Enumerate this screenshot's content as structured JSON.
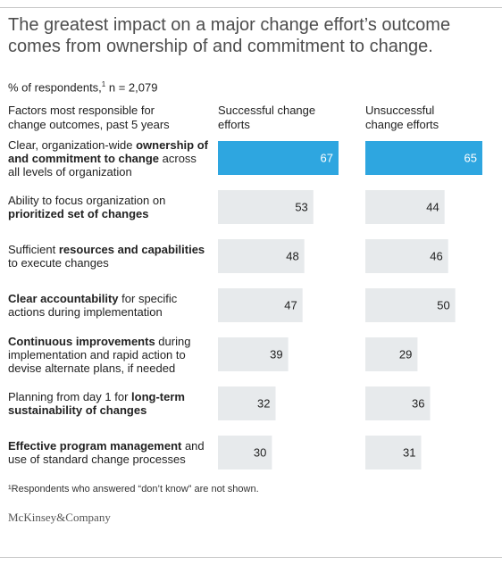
{
  "title": "The greatest impact on a major change effort’s outcome comes from ownership of and commitment to change.",
  "unit_label": "% of respondents,",
  "unit_note_marker": "1",
  "unit_n": " n = 2,079",
  "footnote": "¹Respondents who answered “don’t know” are not shown.",
  "logo": "McKinsey&Company",
  "colors": {
    "highlight": "#2ea6e0",
    "bar": "#e7eaec",
    "highlight_text": "#ffffff",
    "bar_text": "#222222"
  },
  "chart_data": {
    "type": "bar",
    "orientation": "horizontal",
    "category_header": "Factors most responsible for change outcomes, past 5 years",
    "categories": [
      [
        {
          "t": "Clear, organization-wide ",
          "b": false
        },
        {
          "t": "ownership of and commitment to change",
          "b": true
        },
        {
          "t": " across all levels of organization",
          "b": false
        }
      ],
      [
        {
          "t": "Ability to focus organization on ",
          "b": false
        },
        {
          "t": "prioritized set of changes",
          "b": true
        }
      ],
      [
        {
          "t": "Sufficient ",
          "b": false
        },
        {
          "t": "resources and capabilities",
          "b": true
        },
        {
          "t": " to execute changes",
          "b": false
        }
      ],
      [
        {
          "t": "Clear accountability",
          "b": true
        },
        {
          "t": " for specific actions during implementation",
          "b": false
        }
      ],
      [
        {
          "t": "Continuous improvements",
          "b": true
        },
        {
          "t": " during implementation and rapid action to devise alternate plans, if needed",
          "b": false
        }
      ],
      [
        {
          "t": "Planning from day 1 for ",
          "b": false
        },
        {
          "t": "long-term sustainability of changes",
          "b": true
        }
      ],
      [
        {
          "t": "Effective program management",
          "b": true
        },
        {
          "t": " and use of standard change processes",
          "b": false
        }
      ]
    ],
    "series": [
      {
        "name": "Successful change efforts",
        "values": [
          67,
          53,
          48,
          47,
          39,
          32,
          30
        ]
      },
      {
        "name": "Unsuccessful change efforts",
        "values": [
          65,
          44,
          46,
          50,
          29,
          36,
          31
        ]
      }
    ],
    "highlight_index": 0,
    "xlim": [
      0,
      67
    ]
  }
}
